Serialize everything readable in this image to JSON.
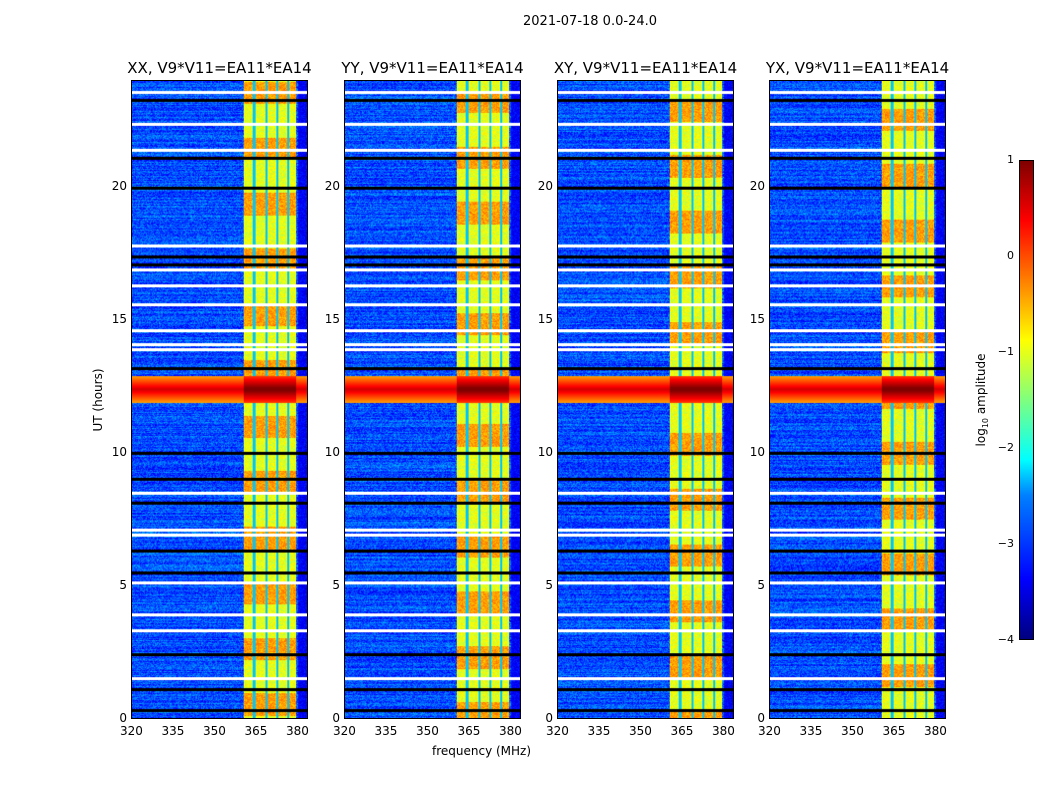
{
  "chart_data": {
    "type": "heatmap",
    "title": "2021-07-18 0.0-24.0",
    "xlabel": "frequency (MHz)",
    "ylabel": "UT (hours)",
    "xlim": [
      320,
      384
    ],
    "ylim": [
      0,
      24
    ],
    "xticks": [
      "320",
      "335",
      "350",
      "365",
      "380"
    ],
    "yticks": [
      "0",
      "5",
      "10",
      "15",
      "20"
    ],
    "panels": [
      {
        "title": "XX, V9*V11=EA11*EA14"
      },
      {
        "title": "YY, V9*V11=EA11*EA14"
      },
      {
        "title": "XY, V9*V11=EA11*EA14"
      },
      {
        "title": "YX, V9*V11=EA11*EA14"
      }
    ],
    "colorbar": {
      "label_prefix": "log",
      "label_sub": "10",
      "label_suffix": " amplitude",
      "range": [
        -4,
        1
      ],
      "ticks": [
        "1",
        "0",
        "−1",
        "−2",
        "−3",
        "−4"
      ],
      "colormap": "jet"
    },
    "background_level": -3.2,
    "bright_band_mhz": [
      360.5,
      380
    ],
    "band_gaps_mhz": [
      364.5,
      369,
      373,
      377
    ],
    "band_level": -1.0,
    "rfi_event_ut_hours": [
      11.9,
      12.9
    ],
    "rfi_level": 0.6,
    "flagged_white_ut_hours": [
      23.6,
      22.4,
      21.4,
      17.8,
      16.9,
      16.3,
      15.6,
      14.6,
      14.1,
      13.9,
      8.5,
      7.1,
      6.9,
      5.1,
      3.9,
      3.3,
      1.5
    ],
    "flagged_black_ut_hours": [
      23.3,
      21.1,
      20.0,
      17.4,
      17.1,
      13.2,
      10.0,
      9.0,
      8.1,
      6.3,
      5.5,
      2.4,
      1.1,
      0.3
    ]
  }
}
